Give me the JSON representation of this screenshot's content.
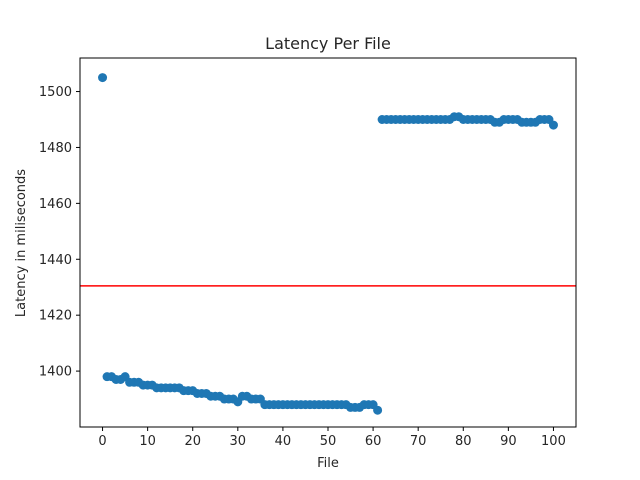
{
  "chart_data": {
    "type": "scatter",
    "title": "Latency Per File",
    "xlabel": "File",
    "ylabel": "Latency in miliseconds",
    "xlim": [
      -5,
      105
    ],
    "ylim": [
      1380,
      1512
    ],
    "xticks": [
      0,
      10,
      20,
      30,
      40,
      50,
      60,
      70,
      80,
      90,
      100
    ],
    "yticks": [
      1400,
      1420,
      1440,
      1460,
      1480,
      1500
    ],
    "grid": false,
    "marker_color": "#1f77b4",
    "reference_line": {
      "y": 1430.5,
      "color": "#ff0000",
      "label": ""
    },
    "x": [
      0,
      1,
      2,
      3,
      4,
      5,
      6,
      7,
      8,
      9,
      10,
      11,
      12,
      13,
      14,
      15,
      16,
      17,
      18,
      19,
      20,
      21,
      22,
      23,
      24,
      25,
      26,
      27,
      28,
      29,
      30,
      31,
      32,
      33,
      34,
      35,
      36,
      37,
      38,
      39,
      40,
      41,
      42,
      43,
      44,
      45,
      46,
      47,
      48,
      49,
      50,
      51,
      52,
      53,
      54,
      55,
      56,
      57,
      58,
      59,
      60,
      61,
      62,
      63,
      64,
      65,
      66,
      67,
      68,
      69,
      70,
      71,
      72,
      73,
      74,
      75,
      76,
      77,
      78,
      79,
      80,
      81,
      82,
      83,
      84,
      85,
      86,
      87,
      88,
      89,
      90,
      91,
      92,
      93,
      94,
      95,
      96,
      97,
      98,
      99,
      100
    ],
    "y": [
      1505,
      1398,
      1398,
      1397,
      1397,
      1398,
      1396,
      1396,
      1396,
      1395,
      1395,
      1395,
      1394,
      1394,
      1394,
      1394,
      1394,
      1394,
      1393,
      1393,
      1393,
      1392,
      1392,
      1392,
      1391,
      1391,
      1391,
      1390,
      1390,
      1390,
      1389,
      1391,
      1391,
      1390,
      1390,
      1390,
      1388,
      1388,
      1388,
      1388,
      1388,
      1388,
      1388,
      1388,
      1388,
      1388,
      1388,
      1388,
      1388,
      1388,
      1388,
      1388,
      1388,
      1388,
      1388,
      1387,
      1387,
      1387,
      1388,
      1388,
      1388,
      1386,
      1490,
      1490,
      1490,
      1490,
      1490,
      1490,
      1490,
      1490,
      1490,
      1490,
      1490,
      1490,
      1490,
      1490,
      1490,
      1490,
      1491,
      1491,
      1490,
      1490,
      1490,
      1490,
      1490,
      1490,
      1490,
      1489,
      1489,
      1490,
      1490,
      1490,
      1490,
      1489,
      1489,
      1489,
      1489,
      1490,
      1490,
      1490,
      1488
    ]
  }
}
